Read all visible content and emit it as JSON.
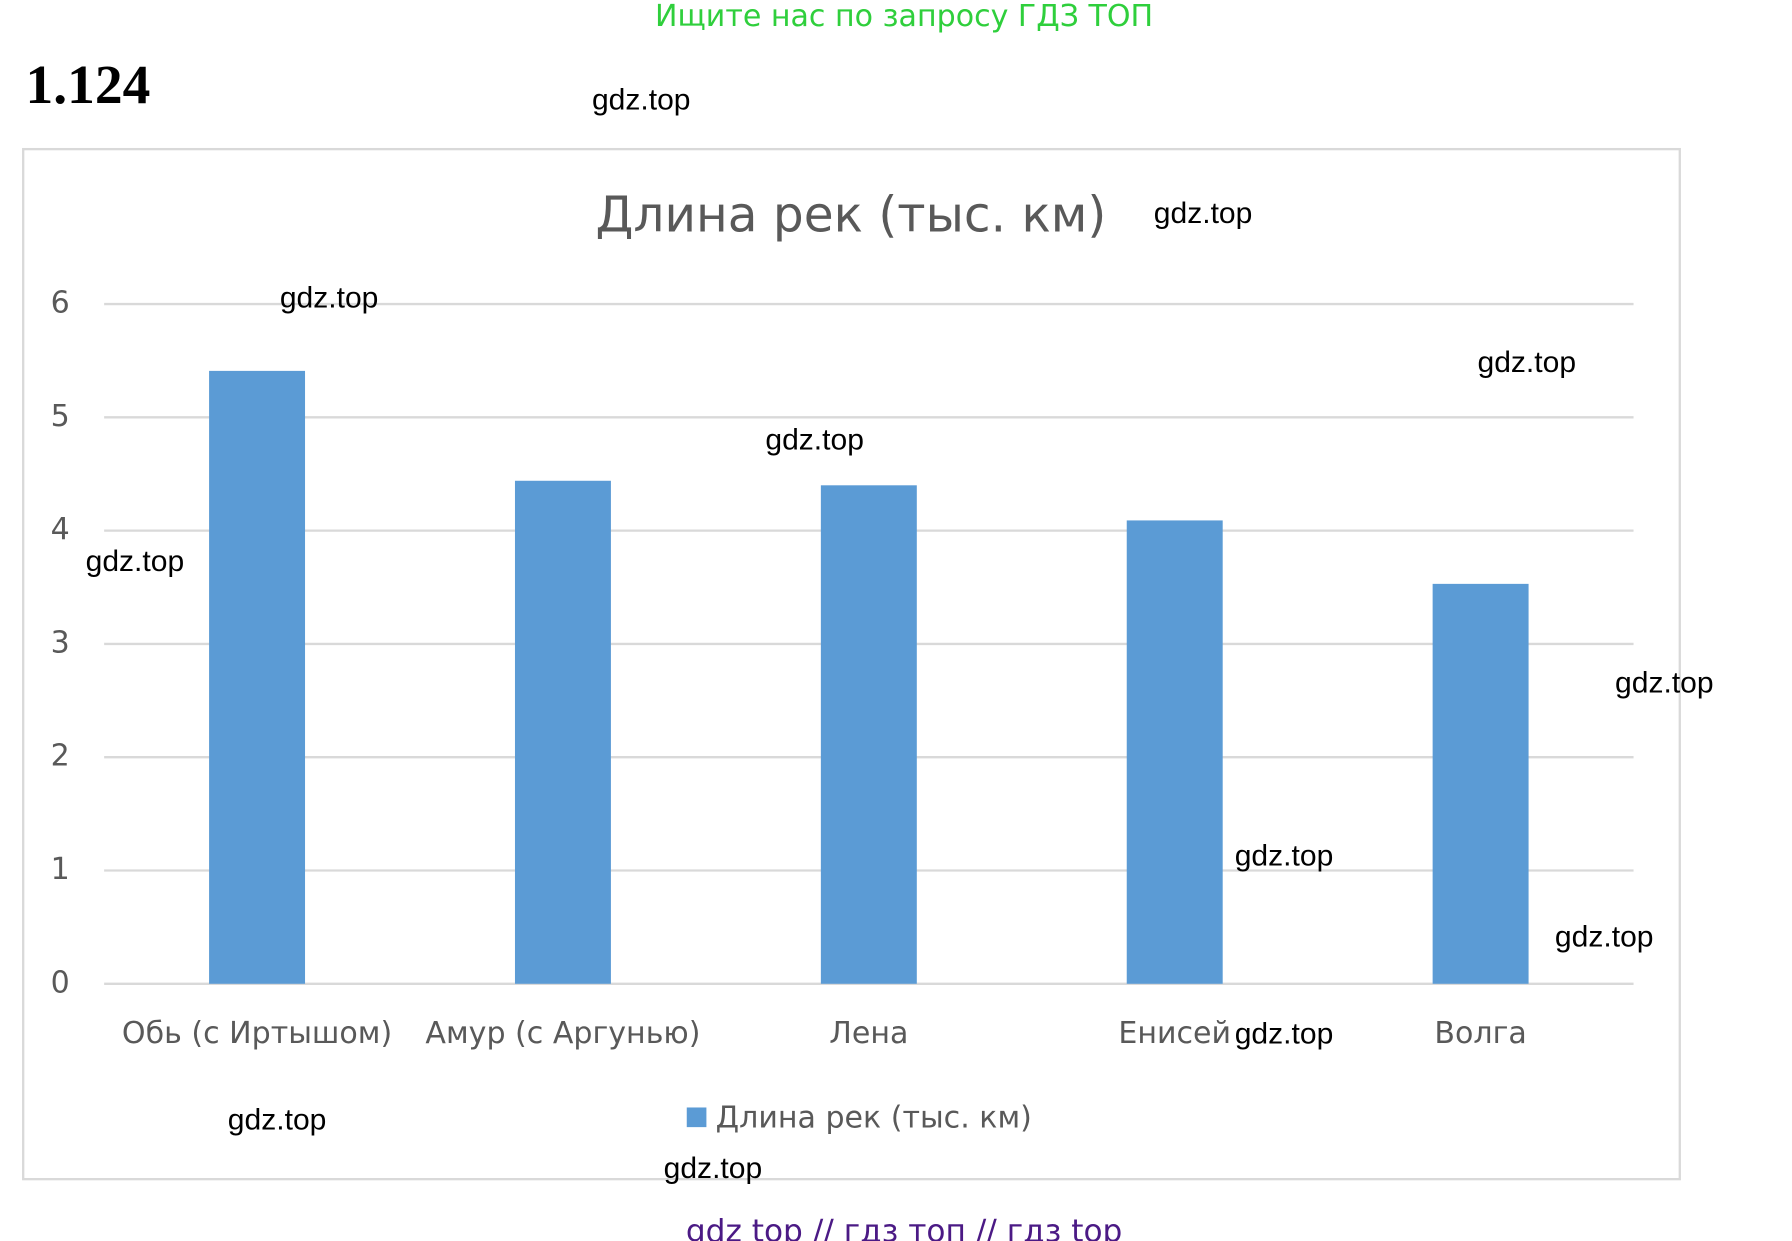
{
  "header": "Ищите нас по запросу ГДЗ ТОП",
  "problem_number": "1.124",
  "watermarks": [
    "gdz.top",
    "gdz.top",
    "gdz.top",
    "gdz.top",
    "gdz.top",
    "gdz.top",
    "gdz.top",
    "gdz.top",
    "gdz.top",
    "gdz.top",
    "gdz.top",
    "gdz.top"
  ],
  "footer": "gdz top  //  гдз топ  //  гдз top",
  "chart_data": {
    "type": "bar",
    "title": "Длина рек (тыс. км)",
    "categories": [
      "Обь (с Иртышом)",
      "Амур (с Аргунью)",
      "Лена",
      "Енисей",
      "Волга"
    ],
    "series": [
      {
        "name": "Длина рек (тыс. км)",
        "color": "#5b9bd5",
        "values": [
          5.41,
          4.44,
          4.4,
          4.09,
          3.53
        ]
      }
    ],
    "ylim": [
      0,
      6
    ],
    "yticks": [
      0,
      1,
      2,
      3,
      4,
      5,
      6
    ],
    "grid": true,
    "legend": "bottom"
  }
}
